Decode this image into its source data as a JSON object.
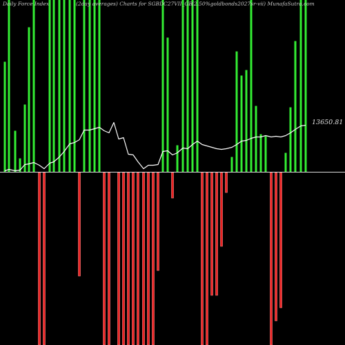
{
  "header": {
    "left": "Daily Force  Index",
    "center": "(2day averages) Charts for SGBDC27VII_GB",
    "right": "(2.50%goldbonds2027sr-vii) MunafaSutra.com"
  },
  "colors": {
    "background": "#000000",
    "positive_bar": "#33ee33",
    "negative_bar": "#ee2222",
    "negative_bar_border": "#ff8888",
    "average_line": "#ffffff",
    "zero_line": "#dddddd"
  },
  "chart_data": {
    "type": "bar",
    "price_label": "13650.81",
    "bars": [
      {
        "x": 7,
        "v": 160
      },
      {
        "x": 13,
        "v": 250
      },
      {
        "x": 22,
        "v": 60
      },
      {
        "x": 29,
        "v": 20
      },
      {
        "x": 36,
        "v": 98
      },
      {
        "x": 42,
        "v": 210
      },
      {
        "x": 49,
        "v": 250
      },
      {
        "x": 57,
        "v": -250
      },
      {
        "x": 64,
        "v": -250
      },
      {
        "x": 72,
        "v": 250
      },
      {
        "x": 78,
        "v": 250
      },
      {
        "x": 86,
        "v": 250
      },
      {
        "x": 93,
        "v": 250
      },
      {
        "x": 101,
        "v": 250
      },
      {
        "x": 108,
        "v": 250
      },
      {
        "x": 115,
        "v": -150
      },
      {
        "x": 122,
        "v": 250
      },
      {
        "x": 130,
        "v": 250
      },
      {
        "x": 137,
        "v": 250
      },
      {
        "x": 144,
        "v": 250
      },
      {
        "x": 151,
        "v": -250
      },
      {
        "x": 158,
        "v": -250
      },
      {
        "x": 172,
        "v": -250
      },
      {
        "x": 179,
        "v": -250
      },
      {
        "x": 186,
        "v": -250
      },
      {
        "x": 193,
        "v": -250
      },
      {
        "x": 200,
        "v": -250
      },
      {
        "x": 208,
        "v": -250
      },
      {
        "x": 215,
        "v": -250
      },
      {
        "x": 222,
        "v": -250
      },
      {
        "x": 229,
        "v": -142
      },
      {
        "x": 236,
        "v": 250
      },
      {
        "x": 243,
        "v": 195
      },
      {
        "x": 250,
        "v": -37
      },
      {
        "x": 257,
        "v": 39
      },
      {
        "x": 265,
        "v": 250
      },
      {
        "x": 272,
        "v": 250
      },
      {
        "x": 279,
        "v": 250
      },
      {
        "x": 286,
        "v": 250
      },
      {
        "x": 293,
        "v": -250
      },
      {
        "x": 300,
        "v": -250
      },
      {
        "x": 307,
        "v": -178
      },
      {
        "x": 314,
        "v": -178
      },
      {
        "x": 321,
        "v": -107
      },
      {
        "x": 328,
        "v": -29
      },
      {
        "x": 336,
        "v": 22
      },
      {
        "x": 343,
        "v": 175
      },
      {
        "x": 350,
        "v": 140
      },
      {
        "x": 357,
        "v": 148
      },
      {
        "x": 364,
        "v": 250
      },
      {
        "x": 371,
        "v": 96
      },
      {
        "x": 378,
        "v": 55
      },
      {
        "x": 385,
        "v": 52
      },
      {
        "x": 393,
        "v": -250
      },
      {
        "x": 400,
        "v": -215
      },
      {
        "x": 407,
        "v": -196
      },
      {
        "x": 414,
        "v": 28
      },
      {
        "x": 421,
        "v": 94
      },
      {
        "x": 428,
        "v": 190
      },
      {
        "x": 436,
        "v": 250
      },
      {
        "x": 443,
        "v": 250
      }
    ],
    "average": [
      {
        "x": 7,
        "v": 2
      },
      {
        "x": 13,
        "v": 4
      },
      {
        "x": 22,
        "v": 2
      },
      {
        "x": 29,
        "v": 3
      },
      {
        "x": 36,
        "v": 11
      },
      {
        "x": 42,
        "v": 12
      },
      {
        "x": 49,
        "v": 14
      },
      {
        "x": 57,
        "v": 10
      },
      {
        "x": 64,
        "v": 5
      },
      {
        "x": 72,
        "v": 13
      },
      {
        "x": 78,
        "v": 15
      },
      {
        "x": 86,
        "v": 22
      },
      {
        "x": 93,
        "v": 30
      },
      {
        "x": 101,
        "v": 41
      },
      {
        "x": 108,
        "v": 43
      },
      {
        "x": 115,
        "v": 47
      },
      {
        "x": 122,
        "v": 61
      },
      {
        "x": 130,
        "v": 61
      },
      {
        "x": 137,
        "v": 63
      },
      {
        "x": 144,
        "v": 65
      },
      {
        "x": 151,
        "v": 60
      },
      {
        "x": 158,
        "v": 57
      },
      {
        "x": 165,
        "v": 72
      },
      {
        "x": 172,
        "v": 48
      },
      {
        "x": 179,
        "v": 50
      },
      {
        "x": 186,
        "v": 26
      },
      {
        "x": 193,
        "v": 25
      },
      {
        "x": 200,
        "v": 15
      },
      {
        "x": 208,
        "v": 5
      },
      {
        "x": 215,
        "v": 10
      },
      {
        "x": 222,
        "v": 10
      },
      {
        "x": 229,
        "v": 11
      },
      {
        "x": 236,
        "v": 30
      },
      {
        "x": 243,
        "v": 31
      },
      {
        "x": 250,
        "v": 25
      },
      {
        "x": 257,
        "v": 28
      },
      {
        "x": 265,
        "v": 35
      },
      {
        "x": 272,
        "v": 34
      },
      {
        "x": 279,
        "v": 40
      },
      {
        "x": 286,
        "v": 45
      },
      {
        "x": 293,
        "v": 40
      },
      {
        "x": 300,
        "v": 38
      },
      {
        "x": 307,
        "v": 36
      },
      {
        "x": 314,
        "v": 34
      },
      {
        "x": 321,
        "v": 33
      },
      {
        "x": 328,
        "v": 34
      },
      {
        "x": 336,
        "v": 36
      },
      {
        "x": 343,
        "v": 40
      },
      {
        "x": 350,
        "v": 45
      },
      {
        "x": 357,
        "v": 46
      },
      {
        "x": 364,
        "v": 49
      },
      {
        "x": 371,
        "v": 51
      },
      {
        "x": 378,
        "v": 51
      },
      {
        "x": 385,
        "v": 53
      },
      {
        "x": 393,
        "v": 51
      },
      {
        "x": 400,
        "v": 52
      },
      {
        "x": 407,
        "v": 51
      },
      {
        "x": 414,
        "v": 53
      },
      {
        "x": 421,
        "v": 57
      },
      {
        "x": 428,
        "v": 62
      },
      {
        "x": 436,
        "v": 67
      },
      {
        "x": 443,
        "v": 68
      }
    ],
    "ylim": [
      -250,
      250
    ],
    "grid": false,
    "legend": "none"
  }
}
